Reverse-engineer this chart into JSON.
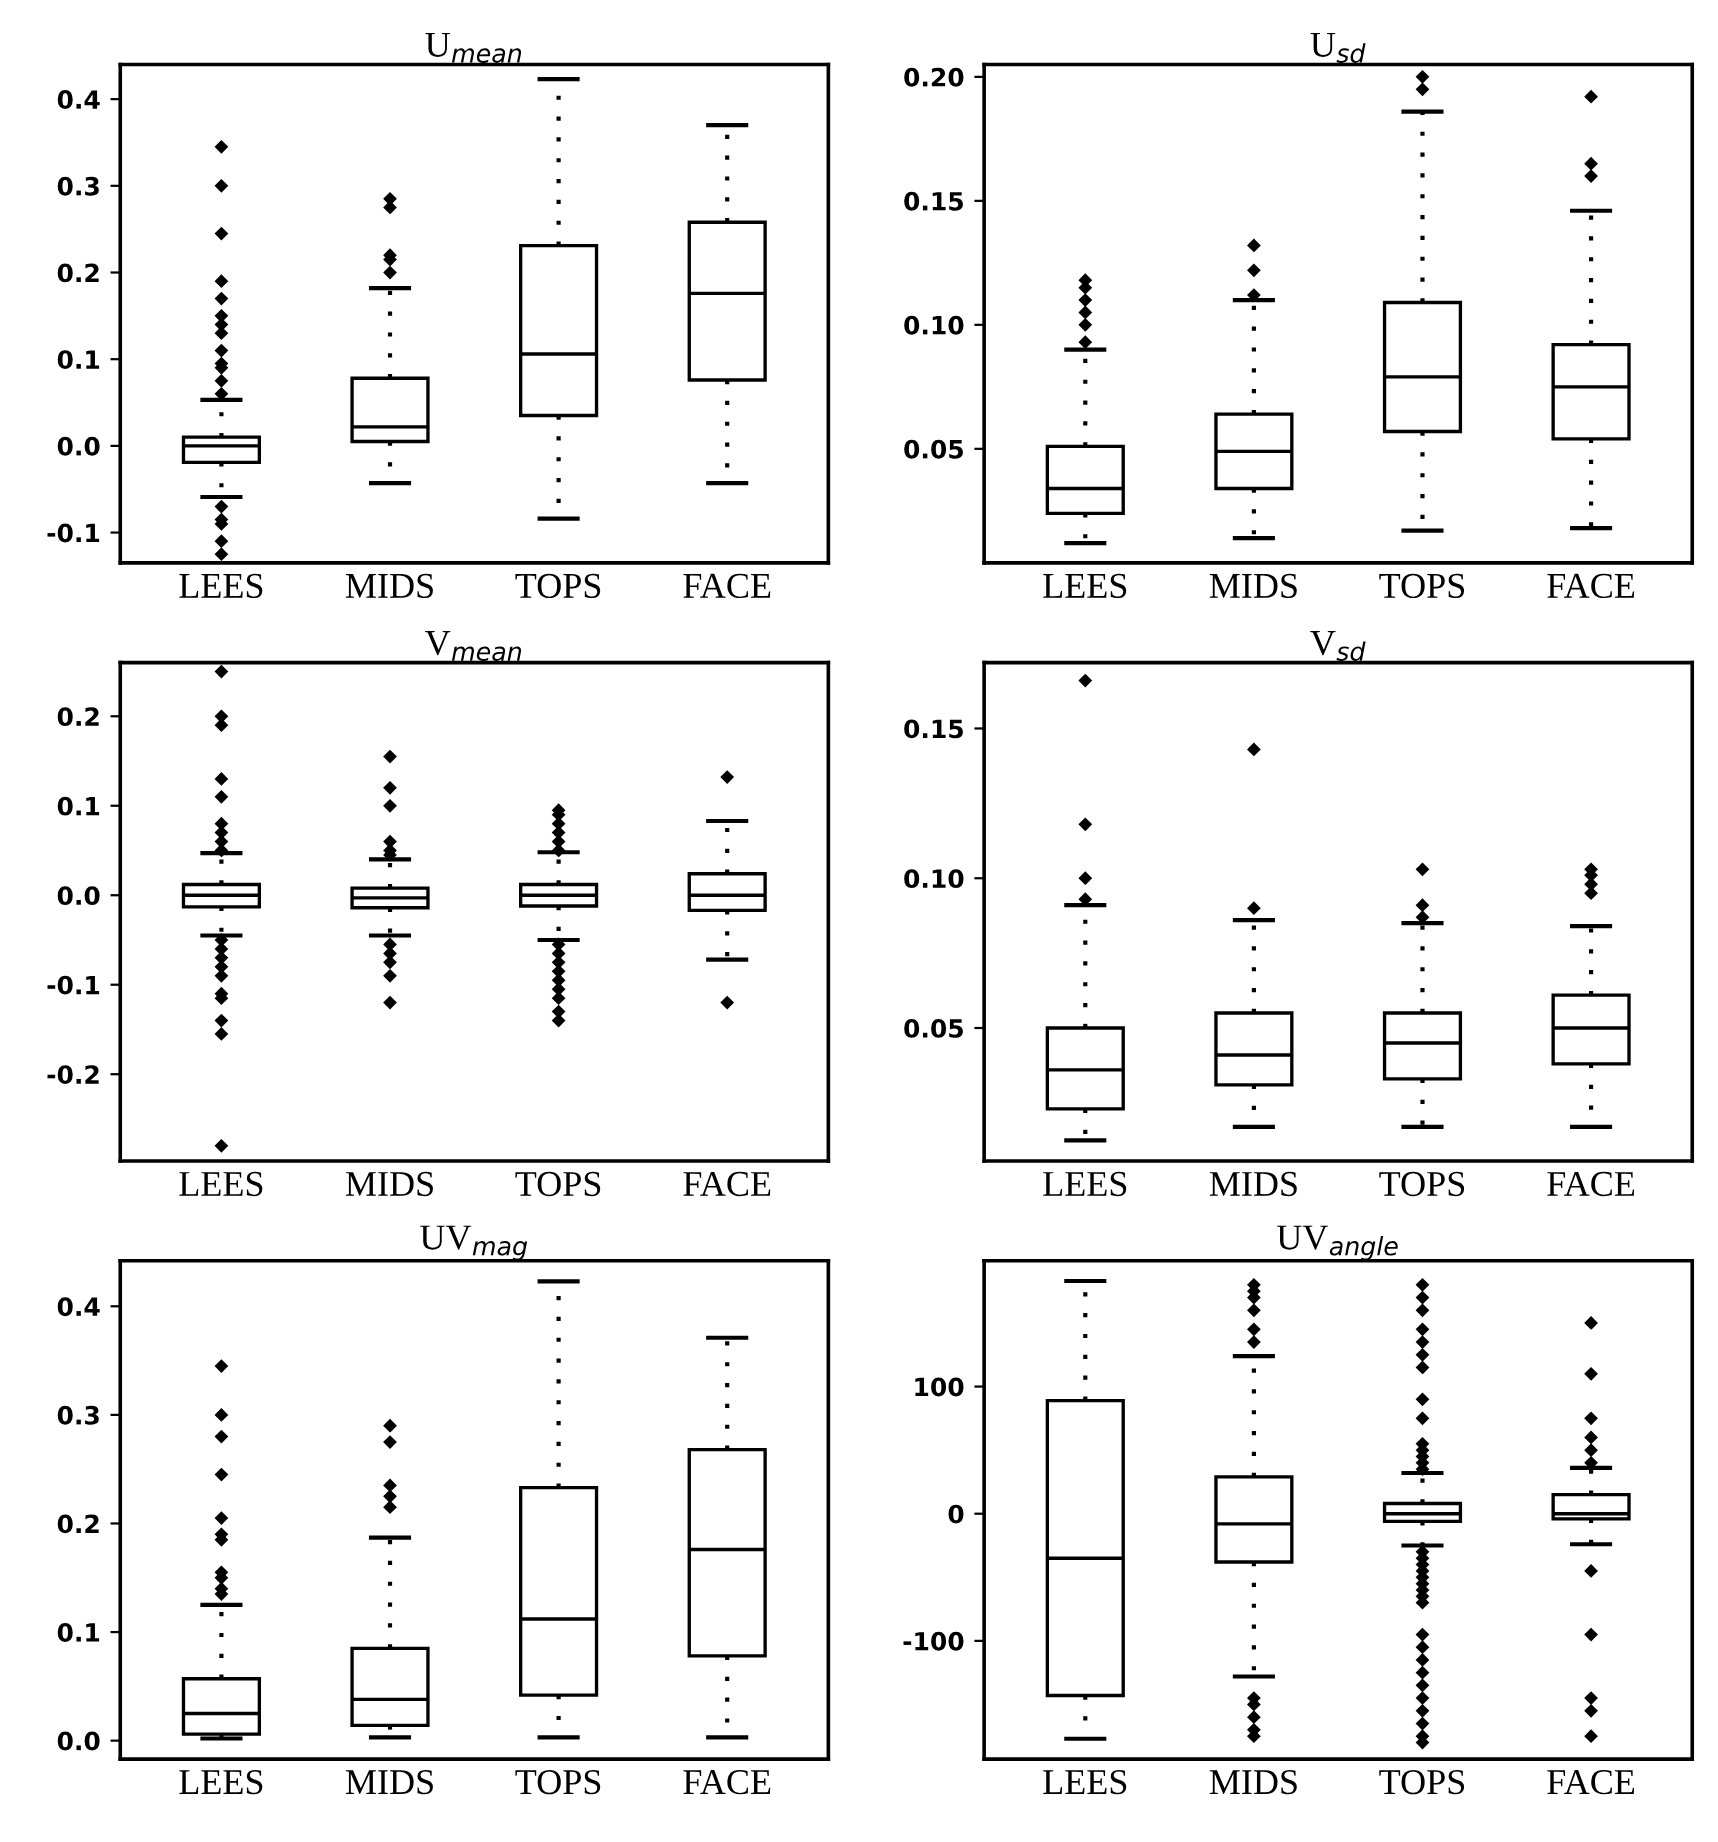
{
  "chart_data": [
    {
      "type": "box",
      "title": "U$_{mean}$",
      "categories": [
        "LEES",
        "MIDS",
        "TOPS",
        "FACE"
      ],
      "ylim": [
        -0.135,
        0.44
      ],
      "yticks": [
        {
          "value": -0.1,
          "label": "-0.1"
        },
        {
          "value": 0.0,
          "label": "0.0"
        },
        {
          "value": 0.1,
          "label": "0.1"
        },
        {
          "value": 0.2,
          "label": "0.2"
        },
        {
          "value": 0.3,
          "label": "0.3"
        },
        {
          "value": 0.4,
          "label": "0.4"
        }
      ],
      "grid": false,
      "boxes": [
        {
          "low": -0.059,
          "q1": -0.019,
          "median": 0.0,
          "q3": 0.01,
          "high": 0.053,
          "outliers": [
            0.06,
            0.075,
            0.09,
            0.095,
            0.11,
            0.13,
            0.14,
            0.15,
            0.17,
            0.19,
            0.245,
            0.3,
            0.345,
            -0.07,
            -0.085,
            -0.09,
            -0.11,
            -0.125
          ]
        },
        {
          "low": -0.043,
          "q1": 0.005,
          "median": 0.022,
          "q3": 0.078,
          "high": 0.182,
          "outliers": [
            0.2,
            0.215,
            0.22,
            0.275,
            0.285
          ]
        },
        {
          "low": -0.084,
          "q1": 0.035,
          "median": 0.106,
          "q3": 0.231,
          "high": 0.423
        },
        {
          "low": -0.043,
          "q1": 0.076,
          "median": 0.176,
          "q3": 0.258,
          "high": 0.37
        }
      ]
    },
    {
      "type": "box",
      "title": "U$_{sd}$",
      "categories": [
        "LEES",
        "MIDS",
        "TOPS",
        "FACE"
      ],
      "ylim": [
        0.004,
        0.205
      ],
      "yticks": [
        {
          "value": 0.05,
          "label": "0.05"
        },
        {
          "value": 0.1,
          "label": "0.10"
        },
        {
          "value": 0.15,
          "label": "0.15"
        },
        {
          "value": 0.2,
          "label": "0.20"
        }
      ],
      "grid": false,
      "boxes": [
        {
          "low": 0.012,
          "q1": 0.024,
          "median": 0.034,
          "q3": 0.051,
          "high": 0.09,
          "outliers": [
            0.093,
            0.1,
            0.105,
            0.11,
            0.115,
            0.118
          ]
        },
        {
          "low": 0.014,
          "q1": 0.034,
          "median": 0.049,
          "q3": 0.064,
          "high": 0.11,
          "outliers": [
            0.112,
            0.122,
            0.132
          ]
        },
        {
          "low": 0.017,
          "q1": 0.057,
          "median": 0.079,
          "q3": 0.109,
          "high": 0.186,
          "outliers": [
            0.195,
            0.2
          ]
        },
        {
          "low": 0.018,
          "q1": 0.054,
          "median": 0.075,
          "q3": 0.092,
          "high": 0.146,
          "outliers": [
            0.16,
            0.165,
            0.192
          ]
        }
      ]
    },
    {
      "type": "box",
      "title": "V$_{mean}$",
      "categories": [
        "LEES",
        "MIDS",
        "TOPS",
        "FACE"
      ],
      "ylim": [
        -0.297,
        0.26
      ],
      "yticks": [
        {
          "value": -0.2,
          "label": "-0.2"
        },
        {
          "value": -0.1,
          "label": "-0.1"
        },
        {
          "value": 0.0,
          "label": "0.0"
        },
        {
          "value": 0.1,
          "label": "0.1"
        },
        {
          "value": 0.2,
          "label": "0.2"
        }
      ],
      "grid": false,
      "boxes": [
        {
          "low": -0.045,
          "q1": -0.013,
          "median": 0.0,
          "q3": 0.012,
          "high": 0.047,
          "outliers": [
            0.05,
            0.06,
            0.07,
            0.08,
            0.11,
            0.13,
            0.19,
            0.2,
            0.25,
            -0.05,
            -0.06,
            -0.07,
            -0.08,
            -0.09,
            -0.11,
            -0.115,
            -0.14,
            -0.155,
            -0.28
          ]
        },
        {
          "low": -0.045,
          "q1": -0.014,
          "median": -0.003,
          "q3": 0.008,
          "high": 0.04,
          "outliers": [
            0.045,
            0.05,
            0.06,
            0.1,
            0.12,
            0.155,
            -0.055,
            -0.065,
            -0.075,
            -0.09,
            -0.12
          ]
        },
        {
          "low": -0.05,
          "q1": -0.012,
          "median": 0.0,
          "q3": 0.012,
          "high": 0.048,
          "outliers": [
            0.05,
            0.06,
            0.07,
            0.08,
            0.09,
            0.095,
            -0.055,
            -0.065,
            -0.075,
            -0.085,
            -0.095,
            -0.105,
            -0.115,
            -0.13,
            -0.14
          ]
        },
        {
          "low": -0.072,
          "q1": -0.017,
          "median": 0.0,
          "q3": 0.024,
          "high": 0.083,
          "outliers": [
            0.132,
            -0.12
          ]
        }
      ]
    },
    {
      "type": "box",
      "title": "V$_{sd}$",
      "categories": [
        "LEES",
        "MIDS",
        "TOPS",
        "FACE"
      ],
      "ylim": [
        0.0056,
        0.172
      ],
      "yticks": [
        {
          "value": 0.05,
          "label": "0.05"
        },
        {
          "value": 0.1,
          "label": "0.10"
        },
        {
          "value": 0.15,
          "label": "0.15"
        }
      ],
      "grid": false,
      "boxes": [
        {
          "low": 0.0125,
          "q1": 0.023,
          "median": 0.036,
          "q3": 0.05,
          "high": 0.091,
          "outliers": [
            0.093,
            0.1,
            0.118,
            0.166
          ]
        },
        {
          "low": 0.017,
          "q1": 0.031,
          "median": 0.041,
          "q3": 0.055,
          "high": 0.086,
          "outliers": [
            0.09,
            0.143
          ]
        },
        {
          "low": 0.017,
          "q1": 0.033,
          "median": 0.045,
          "q3": 0.055,
          "high": 0.085,
          "outliers": [
            0.087,
            0.091,
            0.103
          ]
        },
        {
          "low": 0.017,
          "q1": 0.038,
          "median": 0.05,
          "q3": 0.061,
          "high": 0.084,
          "outliers": [
            0.095,
            0.098,
            0.101,
            0.103
          ]
        }
      ]
    },
    {
      "type": "box",
      "title": "UV$_{mag}$",
      "categories": [
        "LEES",
        "MIDS",
        "TOPS",
        "FACE"
      ],
      "ylim": [
        -0.017,
        0.442
      ],
      "yticks": [
        {
          "value": 0.0,
          "label": "0.0"
        },
        {
          "value": 0.1,
          "label": "0.1"
        },
        {
          "value": 0.2,
          "label": "0.2"
        },
        {
          "value": 0.3,
          "label": "0.3"
        },
        {
          "value": 0.4,
          "label": "0.4"
        }
      ],
      "grid": false,
      "boxes": [
        {
          "low": 0.002,
          "q1": 0.006,
          "median": 0.025,
          "q3": 0.057,
          "high": 0.125,
          "outliers": [
            0.135,
            0.14,
            0.15,
            0.155,
            0.185,
            0.19,
            0.205,
            0.245,
            0.28,
            0.3,
            0.345
          ]
        },
        {
          "low": 0.003,
          "q1": 0.014,
          "median": 0.038,
          "q3": 0.085,
          "high": 0.187,
          "outliers": [
            0.215,
            0.225,
            0.235,
            0.275,
            0.29
          ]
        },
        {
          "low": 0.003,
          "q1": 0.042,
          "median": 0.112,
          "q3": 0.233,
          "high": 0.423
        },
        {
          "low": 0.003,
          "q1": 0.078,
          "median": 0.176,
          "q3": 0.268,
          "high": 0.371
        }
      ]
    },
    {
      "type": "box",
      "title": "UV$_{angle}$",
      "categories": [
        "LEES",
        "MIDS",
        "TOPS",
        "FACE"
      ],
      "ylim": [
        -193,
        199
      ],
      "yticks": [
        -100,
        0,
        100
      ],
      "grid": false,
      "boxes": [
        {
          "low": -177,
          "q1": -143,
          "median": -35,
          "q3": 89,
          "high": 183
        },
        {
          "low": -128,
          "q1": -38,
          "median": -8,
          "q3": 29,
          "high": 124,
          "outliers": [
            135,
            145,
            160,
            170,
            175,
            180,
            -145,
            -150,
            -160,
            -170,
            -175
          ]
        },
        {
          "low": -25,
          "q1": -6,
          "median": 0,
          "q3": 8,
          "high": 32,
          "outliers": [
            35,
            40,
            45,
            50,
            55,
            75,
            90,
            115,
            125,
            135,
            145,
            160,
            170,
            180,
            -30,
            -35,
            -40,
            -45,
            -50,
            -55,
            -60,
            -65,
            -70,
            -95,
            -105,
            -115,
            -125,
            -135,
            -145,
            -155,
            -165,
            -175,
            -180
          ]
        },
        {
          "low": -24,
          "q1": -4,
          "median": 0,
          "q3": 15,
          "high": 36,
          "outliers": [
            40,
            50,
            60,
            75,
            110,
            150,
            -45,
            -95,
            -145,
            -155,
            -175
          ]
        }
      ]
    }
  ]
}
